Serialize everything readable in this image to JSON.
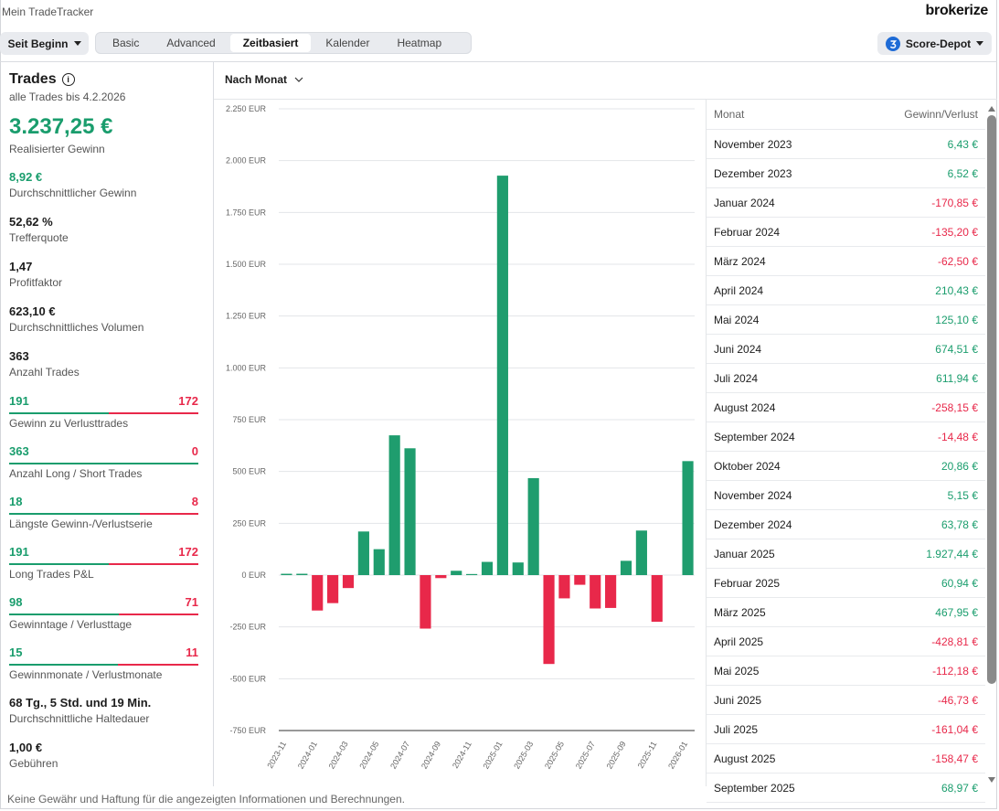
{
  "header": {
    "title": "Mein TradeTracker",
    "logo": "brokerize"
  },
  "toolbar": {
    "period": "Seit Beginn",
    "tabs": [
      "Basic",
      "Advanced",
      "Zeitbasiert",
      "Kalender",
      "Heatmap"
    ],
    "active_tab": 2,
    "depot": "Score-Depot"
  },
  "sidebar": {
    "title": "Trades",
    "subtitle": "alle Trades bis 4.2.2026",
    "total": "3.237,25 €",
    "total_label": "Realisierter Gewinn",
    "stats": [
      {
        "value": "8,92 €",
        "label": "Durchschnittlicher Gewinn",
        "color": "#1a9d6d"
      },
      {
        "value": "52,62 %",
        "label": "Trefferquote"
      },
      {
        "value": "1,47",
        "label": "Profitfaktor"
      },
      {
        "value": "623,10 €",
        "label": "Durchschnittliches Volumen"
      },
      {
        "value": 363,
        "label": "Anzahl Trades"
      },
      {
        "left": 191,
        "right": 172,
        "label": "Gewinn zu Verlusttrades"
      },
      {
        "left": 363,
        "right": 0,
        "label": "Anzahl Long / Short Trades"
      },
      {
        "left": 18,
        "right": 8,
        "label": "Längste Gewinn-/Verlustserie"
      },
      {
        "left": 191,
        "right": 172,
        "label": "Long Trades P&L"
      },
      {
        "left": 98,
        "right": 71,
        "label": "Gewinntage / Verlusttage"
      },
      {
        "left": 15,
        "right": 11,
        "label": "Gewinnmonate / Verlustmonate"
      },
      {
        "value": "68 Tg., 5 Std. und 19 Min.",
        "label": "Durchschnittliche Haltedauer"
      },
      {
        "value": "1,00 €",
        "label": "Gebühren"
      }
    ]
  },
  "chart_control": "Nach Monat",
  "chart_data": {
    "type": "bar",
    "categories": [
      "2023-11",
      null,
      "2024-01",
      null,
      "2024-03",
      null,
      "2024-05",
      null,
      "2024-07",
      null,
      "2024-09",
      null,
      "2024-11",
      null,
      "2025-01",
      null,
      "2025-03",
      null,
      "2025-05",
      null,
      "2025-07",
      null,
      "2025-09",
      null,
      "2025-11",
      null,
      "2026-01"
    ],
    "values": [
      6.43,
      6.52,
      -170.85,
      -135.2,
      -62.5,
      210.43,
      125.1,
      674.51,
      611.94,
      -258.15,
      -14.48,
      20.86,
      5.15,
      63.78,
      1927.44,
      60.94,
      467.95,
      -428.81,
      -112.18,
      -46.73,
      -161.04,
      -158.47,
      68.97,
      215,
      -225,
      0,
      550
    ],
    "colors": {
      "positive": "#1f9d6e",
      "negative": "#e8284a"
    },
    "ylim": [
      -750,
      2250
    ],
    "yticks": [
      {
        "value": -750,
        "label": "-750 EUR"
      },
      {
        "value": -500,
        "label": "-500 EUR"
      },
      {
        "value": -250,
        "label": "-250 EUR"
      },
      {
        "value": 0,
        "label": "0 EUR"
      },
      {
        "value": 250,
        "label": "250 EUR"
      },
      {
        "value": 500,
        "label": "500 EUR"
      },
      {
        "value": 750,
        "label": "750 EUR"
      },
      {
        "value": 1000,
        "label": "1.000 EUR"
      },
      {
        "value": 1250,
        "label": "1.250 EUR"
      },
      {
        "value": 1500,
        "label": "1.500 EUR"
      },
      {
        "value": 1750,
        "label": "1.750 EUR"
      },
      {
        "value": 2000,
        "label": "2.000 EUR"
      },
      {
        "value": 2250,
        "label": "2.250 EUR"
      }
    ],
    "grid": true
  },
  "table": {
    "headers": [
      "Monat",
      "Gewinn/Verlust"
    ],
    "rows": [
      [
        "November 2023",
        "6,43 €"
      ],
      [
        "Dezember 2023",
        "6,52 €"
      ],
      [
        "Januar 2024",
        "-170,85 €"
      ],
      [
        "Februar 2024",
        "-135,20 €"
      ],
      [
        "März 2024",
        "-62,50 €"
      ],
      [
        "April 2024",
        "210,43 €"
      ],
      [
        "Mai 2024",
        "125,10 €"
      ],
      [
        "Juni 2024",
        "674,51 €"
      ],
      [
        "Juli 2024",
        "611,94 €"
      ],
      [
        "August 2024",
        "-258,15 €"
      ],
      [
        "September 2024",
        "-14,48 €"
      ],
      [
        "Oktober 2024",
        "20,86 €"
      ],
      [
        "November 2024",
        "5,15 €"
      ],
      [
        "Dezember 2024",
        "63,78 €"
      ],
      [
        "Januar 2025",
        "1.927,44 €"
      ],
      [
        "Februar 2025",
        "60,94 €"
      ],
      [
        "März 2025",
        "467,95 €"
      ],
      [
        "April 2025",
        "-428,81 €"
      ],
      [
        "Mai 2025",
        "-112,18 €"
      ],
      [
        "Juni 2025",
        "-46,73 €"
      ],
      [
        "Juli 2025",
        "-161,04 €"
      ],
      [
        "August 2025",
        "-158,47 €"
      ],
      [
        "September 2025",
        "68,97 €"
      ]
    ]
  },
  "footer": "Keine Gewähr und Haftung für die angezeigten Informationen und Berechnungen."
}
